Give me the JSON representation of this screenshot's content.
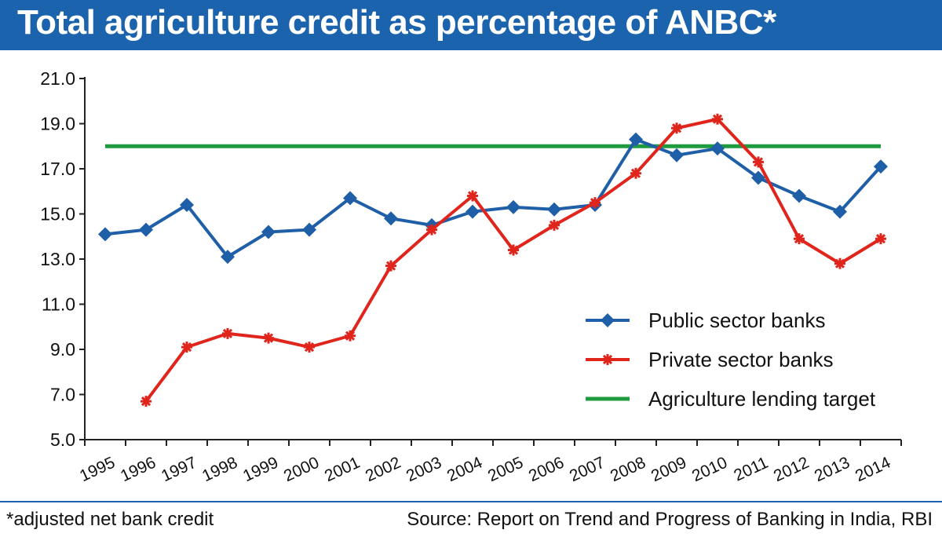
{
  "header": {
    "title": "Total agriculture credit as percentage of ANBC*"
  },
  "footer": {
    "footnote": "*adjusted net bank credit",
    "source": "Source: Report on Trend and Progress of Banking in India, RBI"
  },
  "colors": {
    "title_bar": "#1b63ad",
    "public": "#1f5fa8",
    "private": "#e0251c",
    "target": "#1f9b3f",
    "axis": "#222222"
  },
  "chart_data": {
    "type": "line",
    "x": [
      "1995",
      "1996",
      "1997",
      "1998",
      "1999",
      "2000",
      "2001",
      "2002",
      "2003",
      "2004",
      "2005",
      "2006",
      "2007",
      "2008",
      "2009",
      "2010",
      "2011",
      "2012",
      "2013",
      "2014"
    ],
    "ylim": [
      5.0,
      21.0
    ],
    "yticks": [
      "5.0",
      "7.0",
      "9.0",
      "11.0",
      "13.0",
      "15.0",
      "17.0",
      "19.0",
      "21.0"
    ],
    "grid": false,
    "legend_position": "bottom-right",
    "series": [
      {
        "name": "Public sector banks",
        "color": "#1f5fa8",
        "marker": "diamond",
        "values": [
          14.1,
          14.3,
          15.4,
          13.1,
          14.2,
          14.3,
          15.7,
          14.8,
          14.5,
          15.1,
          15.3,
          15.2,
          15.4,
          18.3,
          17.6,
          17.9,
          16.6,
          15.8,
          15.1,
          17.1
        ]
      },
      {
        "name": "Private sector banks",
        "color": "#e0251c",
        "marker": "asterisk",
        "values": [
          null,
          6.7,
          9.1,
          9.7,
          9.5,
          9.1,
          9.6,
          12.7,
          14.3,
          15.8,
          13.4,
          14.5,
          15.5,
          16.8,
          18.8,
          19.2,
          17.3,
          13.9,
          12.8,
          13.9
        ]
      },
      {
        "name": "Agriculture lending target",
        "color": "#1f9b3f",
        "marker": "none",
        "values": [
          18.0,
          18.0,
          18.0,
          18.0,
          18.0,
          18.0,
          18.0,
          18.0,
          18.0,
          18.0,
          18.0,
          18.0,
          18.0,
          18.0,
          18.0,
          18.0,
          18.0,
          18.0,
          18.0,
          18.0
        ]
      }
    ]
  }
}
